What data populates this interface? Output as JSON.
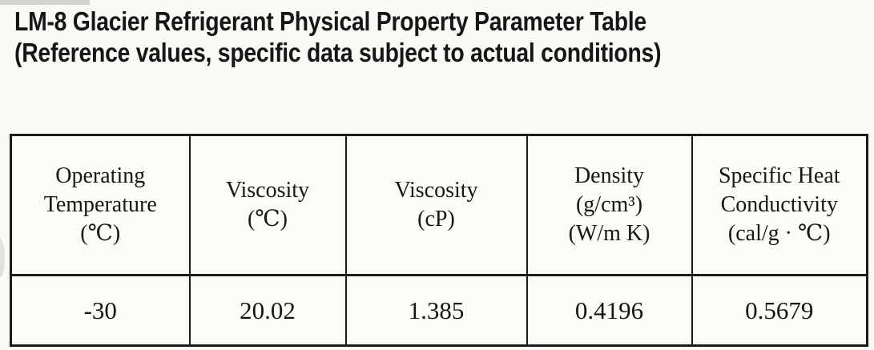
{
  "title": {
    "line1": "LM-8 Glacier Refrigerant Physical Property Parameter Table",
    "line2": "(Reference values, specific data subject to actual conditions)"
  },
  "table": {
    "columns": [
      {
        "id": "operating-temperature",
        "header": "Operating\nTemperature\n(℃)"
      },
      {
        "id": "viscosity-temp",
        "header": "Viscosity\n(℃)"
      },
      {
        "id": "viscosity-cp",
        "header": "Viscosity\n(cP)"
      },
      {
        "id": "density",
        "header": "Density\n(g/cm³)\n(W/m K)"
      },
      {
        "id": "specific-heat",
        "header": "Specific Heat\nConductivity\n(cal/g · ℃)"
      }
    ],
    "rows": [
      [
        "-30",
        "20.02",
        "1.385",
        "0.4196",
        "0.5679"
      ]
    ]
  },
  "colors": {
    "background": "#fbfaf7",
    "text": "#161616",
    "table_border": "#1b1b1b"
  }
}
